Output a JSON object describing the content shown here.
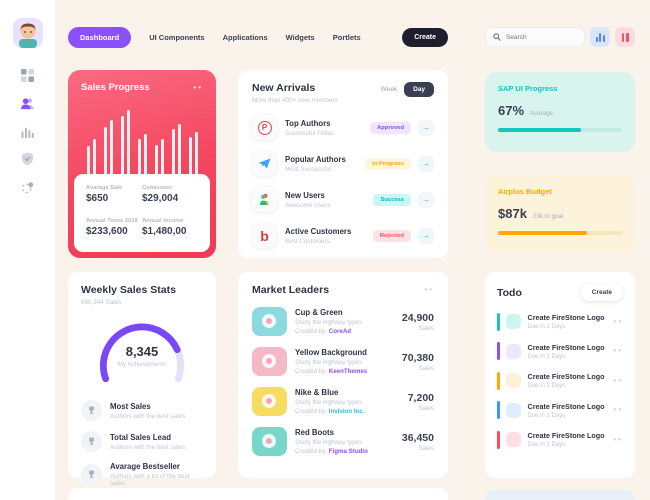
{
  "nav": {
    "tabs": [
      {
        "label": "Dashboard",
        "active": true
      },
      {
        "label": "UI Components",
        "active": false
      },
      {
        "label": "Applications",
        "active": false
      },
      {
        "label": "Widgets",
        "active": false
      },
      {
        "label": "Portlets",
        "active": false
      }
    ],
    "create_label": "Create"
  },
  "search": {
    "placeholder": "Search",
    "icons": [
      "search-icon",
      "bar-chart-icon",
      "pause-bars-icon"
    ]
  },
  "sidebar": {
    "icons": [
      "user-avatar",
      "grid-icon",
      "users-icon",
      "bar-chart-icon",
      "shield-check-icon",
      "sparkle-icon"
    ]
  },
  "sales_progress": {
    "title": "Sales Progress",
    "bars": [
      44,
      54,
      74,
      84,
      90,
      100,
      54,
      62,
      46,
      54,
      70,
      78,
      58,
      66
    ],
    "stats": [
      {
        "label": "Avarage Sale",
        "value": "$650"
      },
      {
        "label": "Comission",
        "value": "$29,004"
      },
      {
        "label": "Annual Taxes 2019",
        "value": "$233,600"
      },
      {
        "label": "Annual Income",
        "value": "$1,480,00"
      }
    ]
  },
  "new_arrivals": {
    "title": "New Arrivals",
    "subtitle": "More than 400+ new members",
    "toggle": {
      "week": "Week",
      "day": "Day",
      "selected": "Day"
    },
    "items": [
      {
        "icon": "producthunt-logo",
        "title": "Top Authors",
        "subtitle": "Successful Fellas",
        "badge": "Approved",
        "badge_color": "#8950fc",
        "badge_bg": "#f0e7ff"
      },
      {
        "icon": "paper-plane-logo",
        "title": "Popular Authors",
        "subtitle": "Most Successful",
        "badge": "In Progress",
        "badge_color": "#ffa800",
        "badge_bg": "#fff4de"
      },
      {
        "icon": "new-users-logo",
        "title": "New Users",
        "subtitle": "Awesome Users",
        "badge": "Success",
        "badge_color": "#0bb7af",
        "badge_bg": "#c9f7f5"
      },
      {
        "icon": "bebo-logo",
        "title": "Active Customers",
        "subtitle": "Best Customers",
        "badge": "Rejected",
        "badge_color": "#f64e60",
        "badge_bg": "#ffe2e5"
      }
    ]
  },
  "weekly_sales": {
    "title": "Weekly Sales Stats",
    "subtitle": "890,344 Sales",
    "gauge_value": "8,345",
    "gauge_caption": "My Achievements",
    "gauge_percent": 80,
    "gauge_color": "#7b48f7",
    "items": [
      {
        "title": "Most Sales",
        "subtitle": "Authors with the best sales"
      },
      {
        "title": "Total Sales Lead",
        "subtitle": "Authors with the best sales"
      },
      {
        "title": "Avarage Bestseller",
        "subtitle": "Authors with a lot of the best sales"
      }
    ]
  },
  "market_leaders": {
    "title": "Market Leaders",
    "created_by_label": "Created by:",
    "sales_caption": "Sales",
    "items": [
      {
        "title": "Cup & Green",
        "subtitle": "Study the highway types",
        "creator": "CoreAd",
        "creator_color": "#8950fc",
        "value": "24,900",
        "thumb_bg": "#8ddade"
      },
      {
        "title": "Yellow Background",
        "subtitle": "Study the highway types",
        "creator": "KeenThemes",
        "creator_color": "#8950fc",
        "value": "70,380",
        "thumb_bg": "#f3b9c6"
      },
      {
        "title": "Nike & Blue",
        "subtitle": "Study the highway types",
        "creator": "Invision Inc.",
        "creator_color": "#36b3f9",
        "value": "7,200",
        "thumb_bg": "#f6dc62"
      },
      {
        "title": "Red Boots",
        "subtitle": "Study the highway types",
        "creator": "Figma Studio",
        "creator_color": "#8950fc",
        "value": "36,450",
        "thumb_bg": "#79d7ca"
      }
    ]
  },
  "right": {
    "sap": {
      "title": "SAP UI Progress",
      "value": "67%",
      "caption": "Avarage",
      "percent": 67,
      "accent": "#14c5bd",
      "bg": "#d9f3ef",
      "track": "#c2ebe5"
    },
    "airplus": {
      "title": "Airplus Budget",
      "value": "$87k",
      "caption": "23k to goal",
      "percent": 72,
      "accent": "#ffa800",
      "bg": "#fcf3da",
      "track": "#f6e6bc"
    },
    "todo": {
      "title": "Todo",
      "create_label": "Create",
      "items": [
        {
          "title": "Create FireStone Logo",
          "due": "Due in 2 Days",
          "color": "#1bc5bd",
          "tile": "#c9f7f0"
        },
        {
          "title": "Create FireStone Logo",
          "due": "Due in 2 Days",
          "color": "#8950fc",
          "tile": "#eee5ff"
        },
        {
          "title": "Create FireStone Logo",
          "due": "Due in 2 Days",
          "color": "#ffa800",
          "tile": "#fff1d8"
        },
        {
          "title": "Create FireStone Logo",
          "due": "Due in 2 Days",
          "color": "#3699ff",
          "tile": "#ddeeff"
        },
        {
          "title": "Create FireStone Logo",
          "due": "Due in 2 Days",
          "color": "#f64e60",
          "tile": "#ffdfe3"
        }
      ]
    }
  }
}
